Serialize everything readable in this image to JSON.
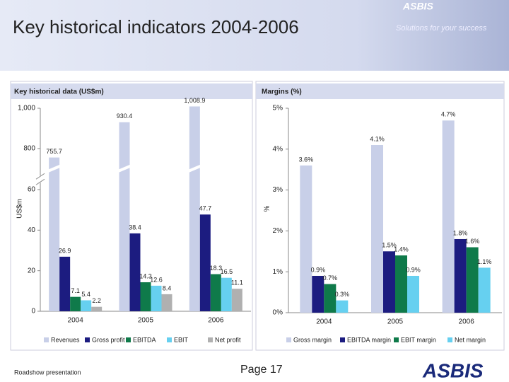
{
  "header": {
    "title": "Key historical indicators 2004-2006",
    "logo": "ASBIS",
    "tagline": "Solutions for your success"
  },
  "footer": {
    "left": "Roadshow presentation",
    "page": "Page 17",
    "logo": "ASBIS"
  },
  "chart_data": [
    {
      "type": "bar",
      "title": "Key historical data (US$m)",
      "ylabel": "US$m",
      "categories": [
        "2004",
        "2005",
        "2006"
      ],
      "ylim": [
        0,
        1000
      ],
      "ybreak": [
        60,
        700
      ],
      "yticks": [
        0,
        20,
        40,
        60,
        800,
        {
          "value": 1000,
          "label": "1,000"
        }
      ],
      "series": [
        {
          "name": "Revenues",
          "color": "#c8cfe8",
          "values": [
            755.7,
            930.4,
            1008.9
          ],
          "value_labels": [
            "755.7",
            "930.4",
            "1,008.9"
          ]
        },
        {
          "name": "Gross profit",
          "color": "#1c1c80",
          "values": [
            26.9,
            38.4,
            47.7
          ]
        },
        {
          "name": "EBITDA",
          "color": "#0f7a4a",
          "values": [
            7.1,
            14.3,
            18.3
          ]
        },
        {
          "name": "EBIT",
          "color": "#66d0f0",
          "values": [
            5.4,
            12.6,
            16.5
          ]
        },
        {
          "name": "Net profit",
          "color": "#b0b0b0",
          "values": [
            2.2,
            8.4,
            11.1
          ]
        }
      ]
    },
    {
      "type": "bar",
      "title": "Margins (%)",
      "ylabel": "%",
      "categories": [
        "2004",
        "2005",
        "2006"
      ],
      "ylim": [
        0,
        5
      ],
      "yticks": [
        {
          "value": 0,
          "label": "0%"
        },
        {
          "value": 1,
          "label": "1%"
        },
        {
          "value": 2,
          "label": "2%"
        },
        {
          "value": 3,
          "label": "3%"
        },
        {
          "value": 4,
          "label": "4%"
        },
        {
          "value": 5,
          "label": "5%"
        }
      ],
      "series": [
        {
          "name": "Gross margin",
          "color": "#c8cfe8",
          "values": [
            3.6,
            4.1,
            4.7
          ],
          "value_labels": [
            "3.6%",
            "4.1%",
            "4.7%"
          ]
        },
        {
          "name": "EBITDA margin",
          "color": "#1c1c80",
          "values": [
            0.9,
            1.5,
            1.8
          ],
          "value_labels": [
            "0.9%",
            "1.5%",
            "1.8%"
          ]
        },
        {
          "name": "EBIT margin",
          "color": "#0f7a4a",
          "values": [
            0.7,
            1.4,
            1.6
          ],
          "value_labels": [
            "0.7%",
            "1.4%",
            "1.6%"
          ]
        },
        {
          "name": "Net margin",
          "color": "#66d0f0",
          "values": [
            0.3,
            0.9,
            1.1
          ],
          "value_labels": [
            "0.3%",
            "0.9%",
            "1.1%"
          ]
        }
      ]
    }
  ]
}
